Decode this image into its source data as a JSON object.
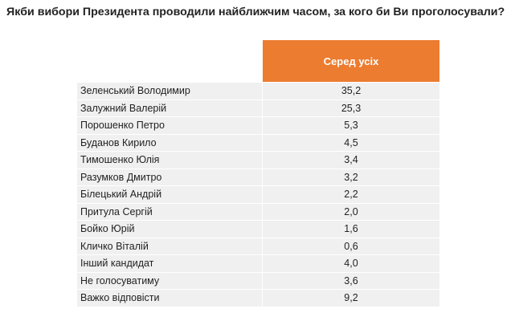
{
  "title": "Якби вибори Президента проводили найближчим часом, за кого би Ви проголосували?",
  "column_header": "Серед усіх",
  "accent_color": "#ec7c30",
  "rows": [
    {
      "label": "Зеленський Володимир",
      "value": "35,2"
    },
    {
      "label": "Залужний Валерій",
      "value": "25,3"
    },
    {
      "label": "Порошенко Петро",
      "value": "5,3"
    },
    {
      "label": "Буданов Кирило",
      "value": "4,5"
    },
    {
      "label": "Тимошенко Юлія",
      "value": "3,4"
    },
    {
      "label": "Разумков Дмитро",
      "value": "3,2"
    },
    {
      "label": "Білецький Андрій",
      "value": "2,2"
    },
    {
      "label": "Притула Сергій",
      "value": "2,0"
    },
    {
      "label": "Бойко Юрій",
      "value": "1,6"
    },
    {
      "label": "Кличко Віталій",
      "value": "0,6"
    },
    {
      "label": "Інший кандидат",
      "value": "4,0"
    },
    {
      "label": "Не голосуватиму",
      "value": "3,6"
    },
    {
      "label": "Важко відповісти",
      "value": "9,2"
    }
  ]
}
